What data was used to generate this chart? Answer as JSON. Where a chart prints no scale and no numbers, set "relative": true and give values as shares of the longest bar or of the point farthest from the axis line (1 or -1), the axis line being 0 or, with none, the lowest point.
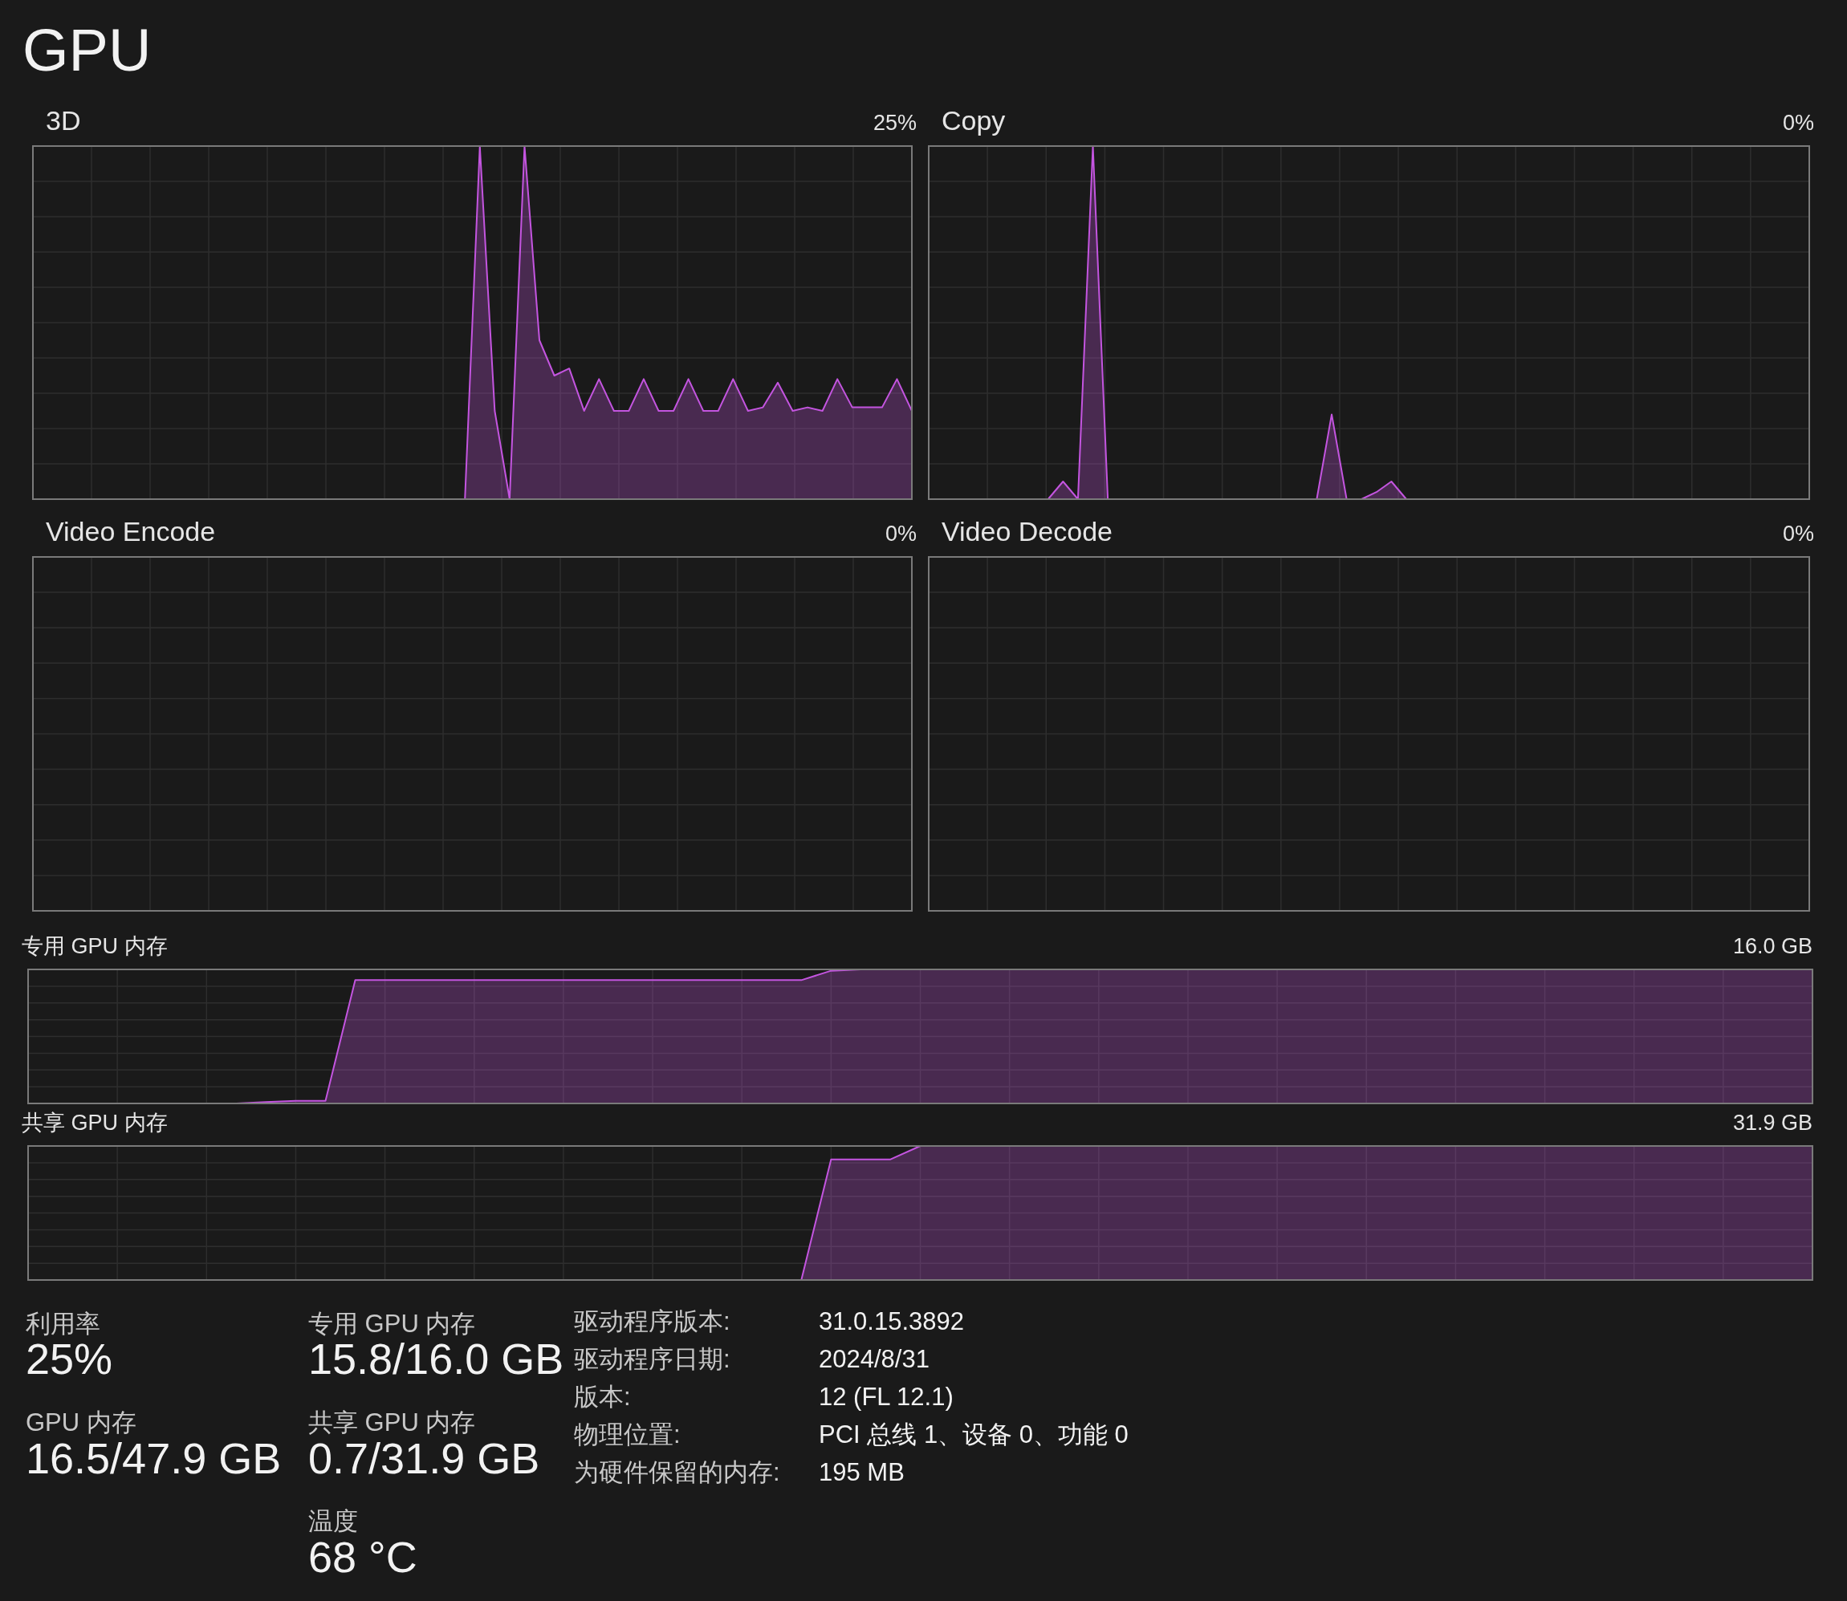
{
  "chart_data": [
    {
      "type": "other",
      "title": "GPU",
      "annotations": [
        "利用率",
        "25%",
        "GPU 内存",
        "16.5/47.9 GB",
        "专用 GPU 内存",
        "15.8/16.0 GB",
        "共享 GPU 内存",
        "0.7/31.9 GB",
        "温度",
        "68 °C",
        "驱动程序版本:",
        "31.0.15.3892",
        "驱动程序日期:",
        "2024/8/31",
        "版本:",
        "12 (FL 12.1)",
        "物理位置:",
        "PCI 总线 1、设备 0、功能 0",
        "为硬件保留的内存:",
        "195 MB"
      ]
    },
    {
      "type": "area",
      "title": "3D",
      "relative": true,
      "grid": true,
      "annotations": [
        "25%"
      ],
      "categories": [
        null,
        null,
        null,
        null,
        null,
        null,
        null,
        null,
        null,
        null,
        null,
        null,
        null,
        null,
        null,
        null,
        null,
        null,
        null,
        null,
        null,
        null,
        null,
        null,
        null,
        null,
        null,
        null,
        null,
        null,
        null,
        null,
        null,
        null,
        null,
        null,
        null,
        null,
        null,
        null,
        null,
        null,
        null,
        null,
        null,
        null,
        null,
        null,
        null,
        null,
        null,
        null,
        null,
        null,
        null,
        null,
        null,
        null,
        null,
        null
      ],
      "series": [
        {
          "color": "#c455e0",
          "values": [
            0,
            0,
            0,
            0,
            0,
            0,
            0,
            0,
            0,
            0,
            0,
            0,
            0,
            0,
            0,
            0,
            0,
            0,
            0,
            0,
            0,
            0,
            0,
            0,
            0,
            0,
            0,
            0,
            0,
            0,
            1,
            0.25,
            0,
            1,
            0.45,
            0.35,
            0.37,
            0.25,
            0.34,
            0.25,
            0.25,
            0.34,
            0.25,
            0.25,
            0.34,
            0.25,
            0.25,
            0.34,
            0.25,
            0.26,
            0.33,
            0.25,
            0.26,
            0.25,
            0.34,
            0.26,
            0.26,
            0.26,
            0.34,
            0.25
          ]
        }
      ]
    },
    {
      "type": "area",
      "title": "Copy",
      "relative": true,
      "grid": true,
      "annotations": [
        "0%"
      ],
      "categories": [
        null,
        null,
        null,
        null,
        null,
        null,
        null,
        null,
        null,
        null,
        null,
        null,
        null,
        null,
        null,
        null,
        null,
        null,
        null,
        null,
        null,
        null,
        null,
        null,
        null,
        null,
        null,
        null,
        null,
        null,
        null,
        null,
        null,
        null,
        null,
        null,
        null,
        null,
        null,
        null,
        null,
        null,
        null,
        null,
        null,
        null,
        null,
        null,
        null,
        null,
        null,
        null,
        null,
        null,
        null,
        null,
        null,
        null,
        null,
        null
      ],
      "series": [
        {
          "color": "#c455e0",
          "values": [
            0,
            0,
            0,
            0,
            0,
            0,
            0,
            0,
            0,
            0.05,
            0,
            1,
            0,
            0,
            0,
            0,
            0,
            0,
            0,
            0,
            0,
            0,
            0,
            0,
            0,
            0,
            0,
            0.24,
            0,
            0,
            0.02,
            0.05,
            0,
            0,
            0,
            0,
            0,
            0,
            0,
            0,
            0,
            0,
            0,
            0,
            0,
            0,
            0,
            0,
            0,
            0,
            0,
            0,
            0,
            0,
            0,
            0,
            0,
            0,
            0,
            0
          ]
        }
      ]
    },
    {
      "type": "other",
      "title": "Video Encode",
      "annotations": [
        "0%"
      ]
    },
    {
      "type": "other",
      "title": "Video Decode",
      "annotations": [
        "0%"
      ]
    },
    {
      "type": "area",
      "title": "专用 GPU 内存",
      "relative": true,
      "grid": true,
      "annotations": [
        "16.0 GB"
      ],
      "categories": [
        null,
        null,
        null,
        null,
        null,
        null,
        null,
        null,
        null,
        null,
        null,
        null,
        null,
        null,
        null,
        null,
        null,
        null,
        null,
        null,
        null,
        null,
        null,
        null,
        null,
        null,
        null,
        null,
        null,
        null,
        null,
        null,
        null,
        null,
        null,
        null,
        null,
        null,
        null,
        null,
        null,
        null,
        null,
        null,
        null,
        null,
        null,
        null,
        null,
        null,
        null,
        null,
        null,
        null,
        null,
        null,
        null,
        null,
        null,
        null,
        null
      ],
      "series": [
        {
          "color": "#c455e0",
          "values": [
            0,
            0,
            0,
            0,
            0,
            0,
            0,
            0,
            0.01,
            0.02,
            0.02,
            0.92,
            0.92,
            0.92,
            0.92,
            0.92,
            0.92,
            0.92,
            0.92,
            0.92,
            0.92,
            0.92,
            0.92,
            0.92,
            0.92,
            0.92,
            0.92,
            0.99,
            1,
            1,
            1,
            1,
            1,
            1,
            1,
            1,
            1,
            1,
            1,
            1,
            1,
            1,
            1,
            1,
            1,
            1,
            1,
            1,
            1,
            1,
            1,
            1,
            1,
            1,
            1,
            1,
            1,
            1,
            1,
            1,
            1
          ]
        }
      ]
    },
    {
      "type": "area",
      "title": "共享 GPU 内存",
      "relative": true,
      "grid": true,
      "annotations": [
        "31.9 GB"
      ],
      "categories": [
        null,
        null,
        null,
        null,
        null,
        null,
        null,
        null,
        null,
        null,
        null,
        null,
        null,
        null,
        null,
        null,
        null,
        null,
        null,
        null,
        null,
        null,
        null,
        null,
        null,
        null,
        null,
        null,
        null,
        null,
        null,
        null,
        null,
        null,
        null,
        null,
        null,
        null,
        null,
        null,
        null,
        null,
        null,
        null,
        null,
        null,
        null,
        null,
        null,
        null,
        null,
        null,
        null,
        null,
        null,
        null,
        null,
        null,
        null,
        null,
        null
      ],
      "series": [
        {
          "color": "#c455e0",
          "values": [
            0,
            0,
            0,
            0,
            0,
            0,
            0,
            0,
            0,
            0,
            0,
            0,
            0,
            0,
            0,
            0,
            0,
            0,
            0,
            0,
            0,
            0,
            0,
            0,
            0,
            0,
            0,
            0.9,
            0.9,
            0.9,
            1,
            1,
            1,
            1,
            1,
            1,
            1,
            1,
            1,
            1,
            1,
            1,
            1,
            1,
            1,
            1,
            1,
            1,
            1,
            1,
            1,
            1,
            1,
            1,
            1,
            1,
            1,
            1,
            1,
            1,
            1
          ]
        }
      ]
    }
  ]
}
